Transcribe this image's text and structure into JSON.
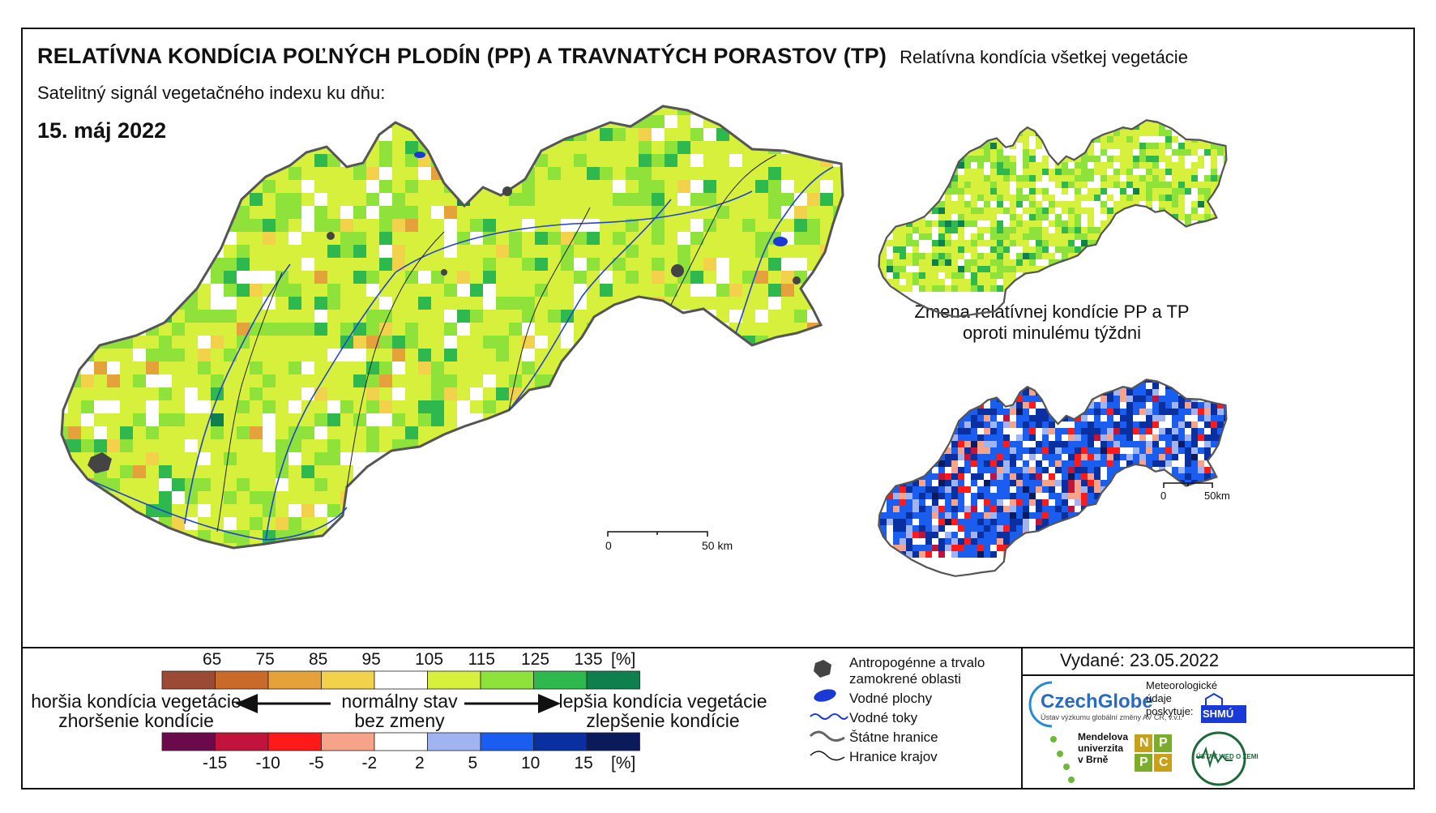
{
  "header": {
    "title": "RELATÍVNA KONDÍCIA POĽNÝCH PLODÍN (PP) A TRAVNATÝCH PORASTOV (TP)",
    "subtitle": "Satelitný signál vegetačného indexu ku dňu:",
    "date": "15. máj 2022"
  },
  "insets": {
    "all_vegetation_title": "Relatívna kondícia všetkej vegetácie",
    "change_title_line1": "Zmena relatívnej kondície PP a TP",
    "change_title_line2": "oproti minulému týždni"
  },
  "scalebar": {
    "start": "0",
    "end": "50 km",
    "inset_end": "50km"
  },
  "legend": {
    "condition_ticks": [
      "65",
      "75",
      "85",
      "95",
      "105",
      "115",
      "125",
      "135"
    ],
    "unit": "[%]",
    "condition_colors": [
      "#9b4a35",
      "#c96a2a",
      "#e5a23a",
      "#f2d24a",
      "#ffffff",
      "#d6f03c",
      "#8ee23a",
      "#2eb84e",
      "#0f7f4d"
    ],
    "change_ticks": [
      "-15",
      "-10",
      "-5",
      "-2",
      "2",
      "5",
      "10",
      "15"
    ],
    "change_colors": [
      "#6b0a4a",
      "#c0143c",
      "#ff1a1a",
      "#f7a38a",
      "#ffffff",
      "#9fb4f0",
      "#1a5ef0",
      "#0a2fa0",
      "#0a1a5a"
    ],
    "worse_line1": "horšia kondícia vegetácie",
    "worse_line2": "zhoršenie kondície",
    "normal_line1": "normálny stav",
    "normal_line2": "bez zmeny",
    "better_line1": "lepšia kondícia vegetácie",
    "better_line2": "zlepšenie kondície"
  },
  "symbols": {
    "urban": "Antropogénne a trvalo zamokrené oblasti",
    "urban_line1": "Antropogénne a trvalo",
    "urban_line2": "zamokrené oblasti",
    "water": "Vodné plochy",
    "rivers": "Vodné toky",
    "state_border": "Štátne hranice",
    "region_border": "Hranice krajov"
  },
  "footer": {
    "issued": "Vydané: 23.05.2022",
    "czechglobe": "CzechGlobe",
    "czechglobe_sub": "Ústav výzkumu globální změny AV ČR, v.v.i.",
    "meteo_line1": "Meteorologické",
    "meteo_line2": "údaje",
    "meteo_line3": "poskytuje:",
    "shmu": "SHMÚ",
    "mendel_line1": "Mendelova",
    "mendel_line2": "univerzita",
    "mendel_line3": "v Brně",
    "nppc": [
      "N",
      "P",
      "P",
      "C"
    ],
    "uvz": "ÚSTAV VIED O ZEMI"
  }
}
